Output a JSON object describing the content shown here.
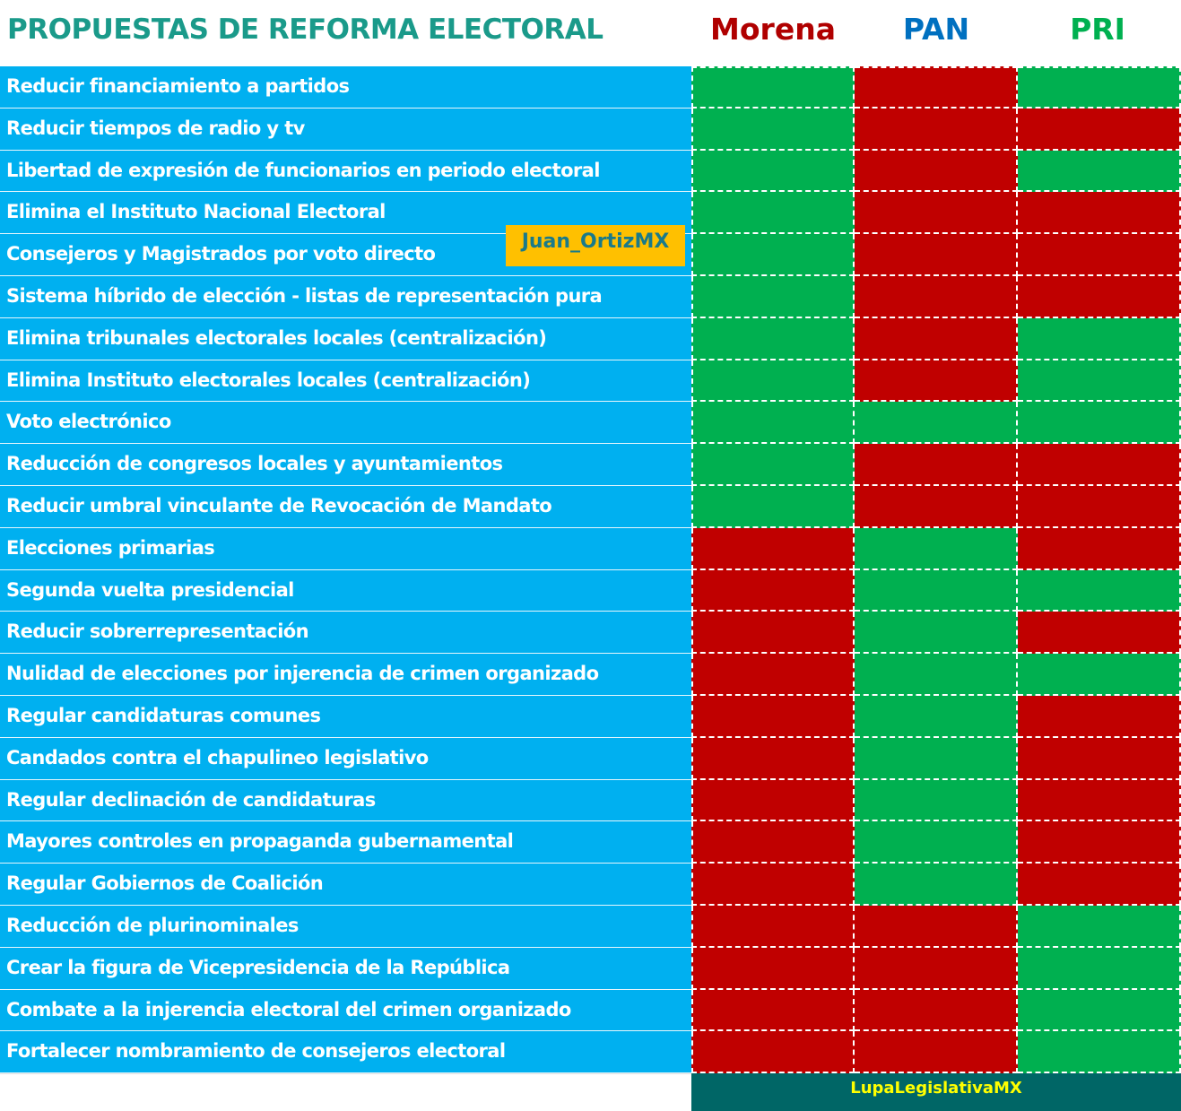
{
  "header": {
    "title": "PROPUESTAS DE REFORMA ELECTORAL",
    "parties": [
      {
        "name": "Morena",
        "color": "#b00000"
      },
      {
        "name": "PAN",
        "color": "#0070c0"
      },
      {
        "name": "PRI",
        "color": "#00b050"
      }
    ]
  },
  "colors": {
    "favor": "#00b050",
    "contra": "#c00000",
    "label_bg": "#00b0f0"
  },
  "rows": [
    {
      "label": "Reducir financiamiento a partidos",
      "votes": [
        "g",
        "r",
        "g"
      ]
    },
    {
      "label": "Reducir tiempos de radio y tv",
      "votes": [
        "g",
        "r",
        "r"
      ]
    },
    {
      "label": "Libertad de expresión de funcionarios en periodo electoral",
      "votes": [
        "g",
        "r",
        "g"
      ]
    },
    {
      "label": "Elimina el Instituto Nacional Electoral",
      "votes": [
        "g",
        "r",
        "r"
      ]
    },
    {
      "label": "Consejeros y Magistrados por voto directo",
      "votes": [
        "g",
        "r",
        "r"
      ]
    },
    {
      "label": "Sistema híbrido de elección - listas de representación pura",
      "votes": [
        "g",
        "r",
        "r"
      ]
    },
    {
      "label": "Elimina tribunales electorales locales (centralización)",
      "votes": [
        "g",
        "r",
        "g"
      ]
    },
    {
      "label": "Elimina Instituto electorales locales (centralización)",
      "votes": [
        "g",
        "r",
        "g"
      ]
    },
    {
      "label": "Voto electrónico",
      "votes": [
        "g",
        "g",
        "g"
      ]
    },
    {
      "label": "Reducción de congresos locales y ayuntamientos",
      "votes": [
        "g",
        "r",
        "r"
      ]
    },
    {
      "label": "Reducir umbral vinculante de Revocación de Mandato",
      "votes": [
        "g",
        "r",
        "r"
      ]
    },
    {
      "label": "Elecciones primarias",
      "votes": [
        "r",
        "g",
        "r"
      ]
    },
    {
      "label": "Segunda vuelta presidencial",
      "votes": [
        "r",
        "g",
        "g"
      ]
    },
    {
      "label": "Reducir sobrerrepresentación",
      "votes": [
        "r",
        "g",
        "r"
      ]
    },
    {
      "label": "Nulidad de elecciones por injerencia de crimen organizado",
      "votes": [
        "r",
        "g",
        "g"
      ]
    },
    {
      "label": "Regular candidaturas comunes",
      "votes": [
        "r",
        "g",
        "r"
      ]
    },
    {
      "label": "Candados contra el chapulineo legislativo",
      "votes": [
        "r",
        "g",
        "r"
      ]
    },
    {
      "label": "Regular declinación de candidaturas",
      "votes": [
        "r",
        "g",
        "r"
      ]
    },
    {
      "label": "Mayores controles en propaganda gubernamental",
      "votes": [
        "r",
        "g",
        "r"
      ]
    },
    {
      "label": "Regular Gobiernos de Coalición",
      "votes": [
        "r",
        "g",
        "r"
      ]
    },
    {
      "label": "Reducción de plurinominales",
      "votes": [
        "r",
        "r",
        "g"
      ]
    },
    {
      "label": "Crear la figura de Vicepresidencia de la República",
      "votes": [
        "r",
        "r",
        "g"
      ]
    },
    {
      "label": "Combate a la injerencia electoral del crimen organizado",
      "votes": [
        "r",
        "r",
        "g"
      ]
    },
    {
      "label": "Fortalecer nombramiento de consejeros electoral",
      "votes": [
        "r",
        "r",
        "g"
      ]
    }
  ],
  "watermark": "Juan_OrtizMX",
  "footer": "LupaLegislativaMX"
}
